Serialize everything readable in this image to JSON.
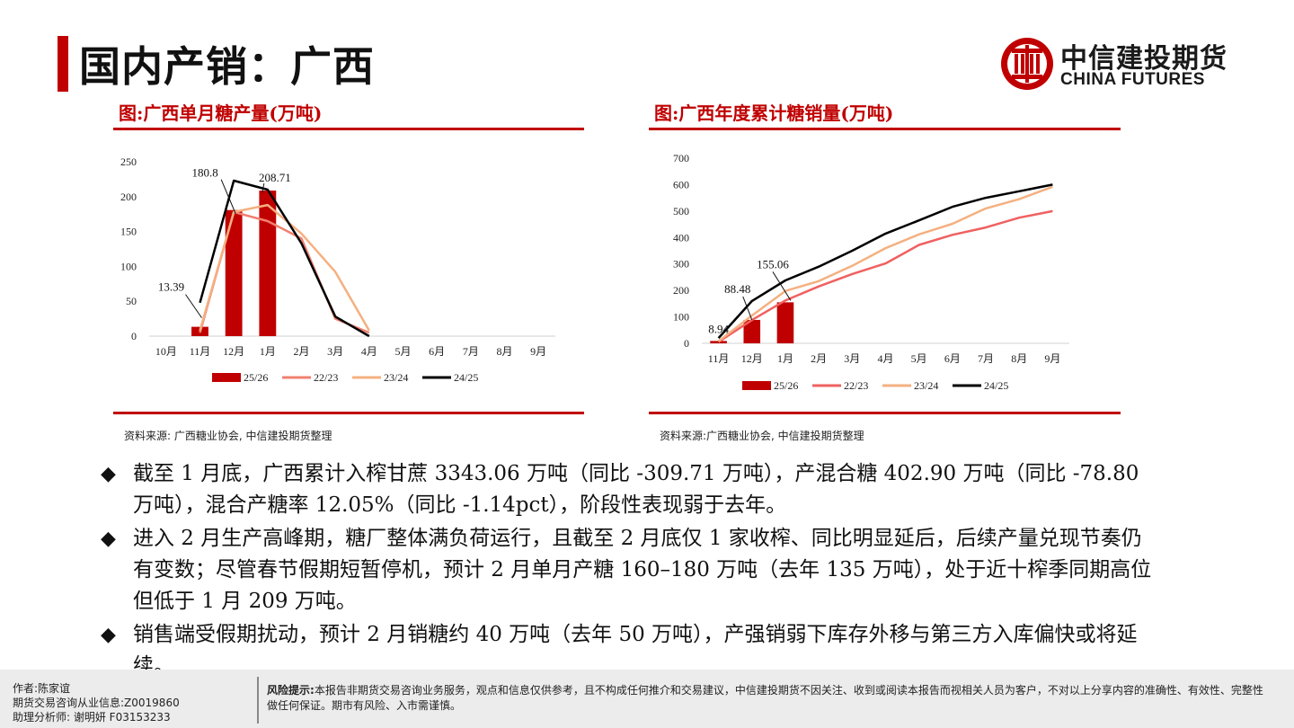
{
  "page": {
    "title": "国内产销：广西"
  },
  "logo": {
    "name_cn": "中信建投期货",
    "name_en": "CHINA FUTURES"
  },
  "chart_titles": {
    "left": "图:广西单月糖产量(万吨)",
    "right": "图:广西年度累计糖销量(万吨)"
  },
  "sources": {
    "left": "资料来源: 广西糖业协会, 中信建投期货整理",
    "right": "资料来源:广西糖业协会, 中信建投期货整理"
  },
  "chart_data": [
    {
      "type": "bar+line",
      "title": "图:广西单月糖产量(万吨)",
      "categories": [
        "10月",
        "11月",
        "12月",
        "1月",
        "2月",
        "3月",
        "4月",
        "5月",
        "6月",
        "7月",
        "8月",
        "9月"
      ],
      "ylim": [
        0,
        250
      ],
      "yticks": [
        0,
        50,
        100,
        150,
        200,
        250
      ],
      "series": [
        {
          "name": "25/26",
          "kind": "bar",
          "values": [
            null,
            13.39,
            180.8,
            208.71,
            null,
            null,
            null,
            null,
            null,
            null,
            null,
            null
          ]
        },
        {
          "name": "22/23",
          "kind": "line",
          "values": [
            null,
            5,
            178,
            165,
            140,
            25,
            5,
            null,
            null,
            null,
            null,
            null
          ]
        },
        {
          "name": "23/24",
          "kind": "line",
          "values": [
            null,
            8,
            178,
            188,
            147,
            92,
            8,
            null,
            null,
            null,
            null,
            null
          ]
        },
        {
          "name": "24/25",
          "kind": "line",
          "values": [
            null,
            48,
            223,
            210,
            133,
            28,
            0,
            null,
            null,
            null,
            null,
            null
          ]
        }
      ],
      "data_labels": [
        "13.39",
        "180.8",
        "208.71"
      ],
      "colors": {
        "25/26": "#c00000",
        "22/23": "#f08070",
        "23/24": "#f4b080",
        "24/25": "#000000"
      }
    },
    {
      "type": "bar+line",
      "title": "图:广西年度累计糖销量(万吨)",
      "categories": [
        "11月",
        "12月",
        "1月",
        "2月",
        "3月",
        "4月",
        "5月",
        "6月",
        "7月",
        "8月",
        "9月"
      ],
      "ylim": [
        0,
        700
      ],
      "yticks": [
        0,
        100,
        200,
        300,
        400,
        500,
        600,
        700
      ],
      "series": [
        {
          "name": "25/26",
          "kind": "bar",
          "values": [
            8.94,
            88.48,
            155.06,
            null,
            null,
            null,
            null,
            null,
            null,
            null,
            null
          ]
        },
        {
          "name": "22/23",
          "kind": "line",
          "values": [
            5,
            88,
            162,
            215,
            262,
            302,
            372,
            410,
            438,
            475,
            500
          ]
        },
        {
          "name": "23/24",
          "kind": "line",
          "values": [
            8,
            105,
            198,
            235,
            293,
            360,
            412,
            452,
            510,
            545,
            592
          ]
        },
        {
          "name": "24/25",
          "kind": "line",
          "values": [
            20,
            160,
            238,
            290,
            350,
            415,
            465,
            516,
            550,
            575,
            600
          ]
        }
      ],
      "data_labels": [
        "8.94",
        "88.48",
        "155.06"
      ],
      "colors": {
        "25/26": "#c00000",
        "22/23": "#f06060",
        "23/24": "#f4b080",
        "24/25": "#000000"
      }
    }
  ],
  "bullets": [
    "截至 1 月底，广西累计入榨甘蔗 3343.06 万吨（同比 -309.71 万吨），产混合糖 402.90 万吨（同比 -78.80 万吨），混合产糖率 12.05%（同比 -1.14pct），阶段性表现弱于去年。",
    "进入 2 月生产高峰期，糖厂整体满负荷运行，且截至 2 月底仅 1 家收榨、同比明显延后，后续产量兑现节奏仍有变数；尽管春节假期短暂停机，预计 2 月单月产糖 160–180 万吨（去年 135 万吨），处于近十榨季同期高位但低于 1 月 209 万吨。",
    "销售端受假期扰动，预计 2 月销糖约 40 万吨（去年 50 万吨），产强销弱下库存外移与第三方入库偏快或将延续。"
  ],
  "bullet_mark": "◆",
  "footer": {
    "author": "作者:陈家谊",
    "license": "期货交易咨询从业信息:Z0019860",
    "assistant": "助理分析师:  谢明妍 F03153233",
    "risk_label": "风险提示:",
    "risk_text": "本报告非期货交易咨询业务服务，观点和信息仅供参考，且不构成任何推介和交易建议，中信建投期货不因关注、收到或阅读本报告而视相关人员为客户，不对以上分享内容的准确性、有效性、完整性做任何保证。期市有风险、入市需谨慎。"
  }
}
